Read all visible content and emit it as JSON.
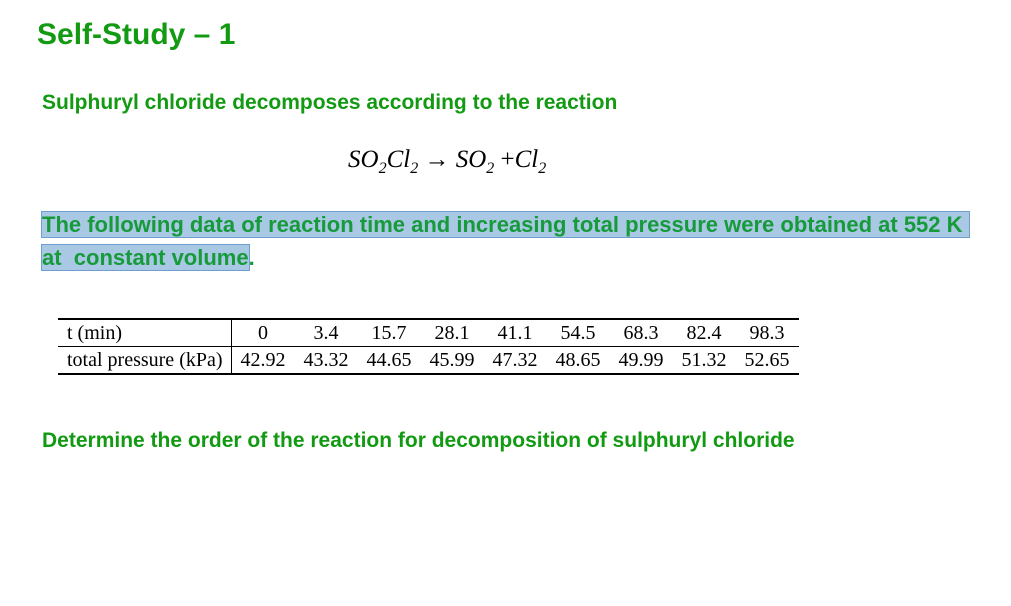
{
  "title": "Self-Study – 1",
  "intro": "Sulphuryl chloride decomposes according to the reaction",
  "equation": {
    "reactant": [
      "SO",
      "2",
      "Cl",
      "2"
    ],
    "arrow": "→",
    "product1": [
      "SO",
      "2"
    ],
    "plus": "+",
    "product2": [
      "Cl",
      "2"
    ]
  },
  "paragraph": {
    "highlighted": "The following data of reaction time and increasing total pressure were obtained at 552 K at  constant volume",
    "end": "."
  },
  "table": {
    "rows": [
      [
        "t (min)",
        0,
        3.4,
        15.7,
        28.1,
        41.1,
        54.5,
        68.3,
        82.4,
        98.3
      ],
      [
        "total pressure (kPa)",
        42.92,
        43.32,
        44.65,
        45.99,
        47.32,
        48.65,
        49.99,
        51.32,
        52.65
      ]
    ]
  },
  "question": "Determine the order of the reaction for decomposition of sulphuryl chloride"
}
